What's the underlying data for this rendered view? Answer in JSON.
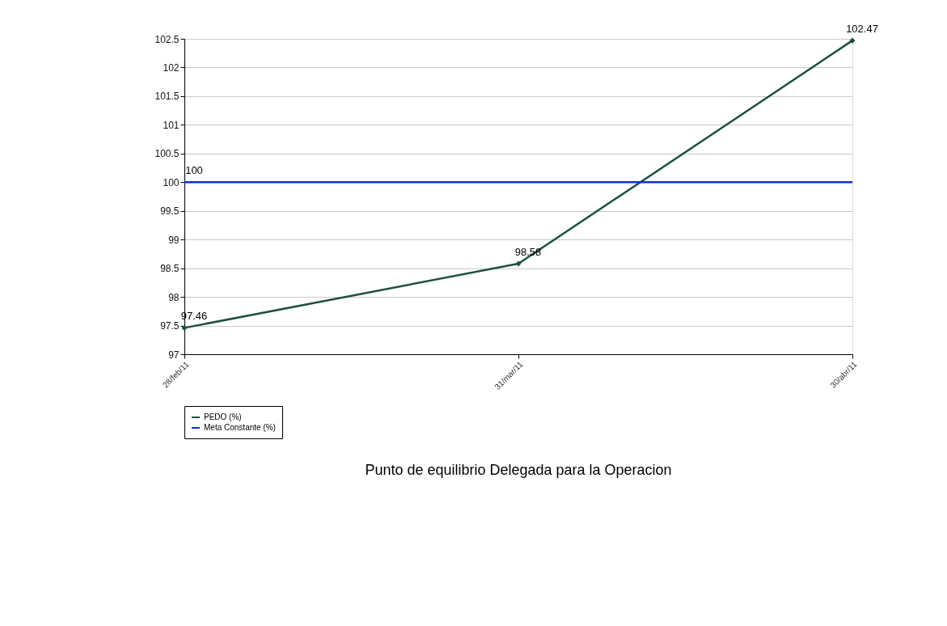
{
  "chart_data": {
    "type": "line",
    "title": "Punto de equilibrio Delegada para la Operacion",
    "categories": [
      "28/feb/11",
      "31/mar/11",
      "30/abr/11"
    ],
    "series": [
      {
        "name": "PEDO (%)",
        "color": "#1f5040",
        "values": [
          97.46,
          98.58,
          102.47
        ],
        "marker": "diamond",
        "value_labels": [
          "97.46",
          "98.58",
          "102.47"
        ]
      },
      {
        "name": "Meta Constante (%)",
        "color": "#0a32c8",
        "values": [
          100,
          100,
          100
        ],
        "marker": "none",
        "value_labels": [
          "100",
          null,
          null
        ]
      }
    ],
    "ylim": [
      97,
      102.5
    ],
    "yticks": [
      97,
      97.5,
      98,
      98.5,
      99,
      99.5,
      100,
      100.5,
      101,
      101.5,
      102,
      102.5
    ],
    "grid": "y",
    "legend": "bottom",
    "line_style": "solid"
  }
}
